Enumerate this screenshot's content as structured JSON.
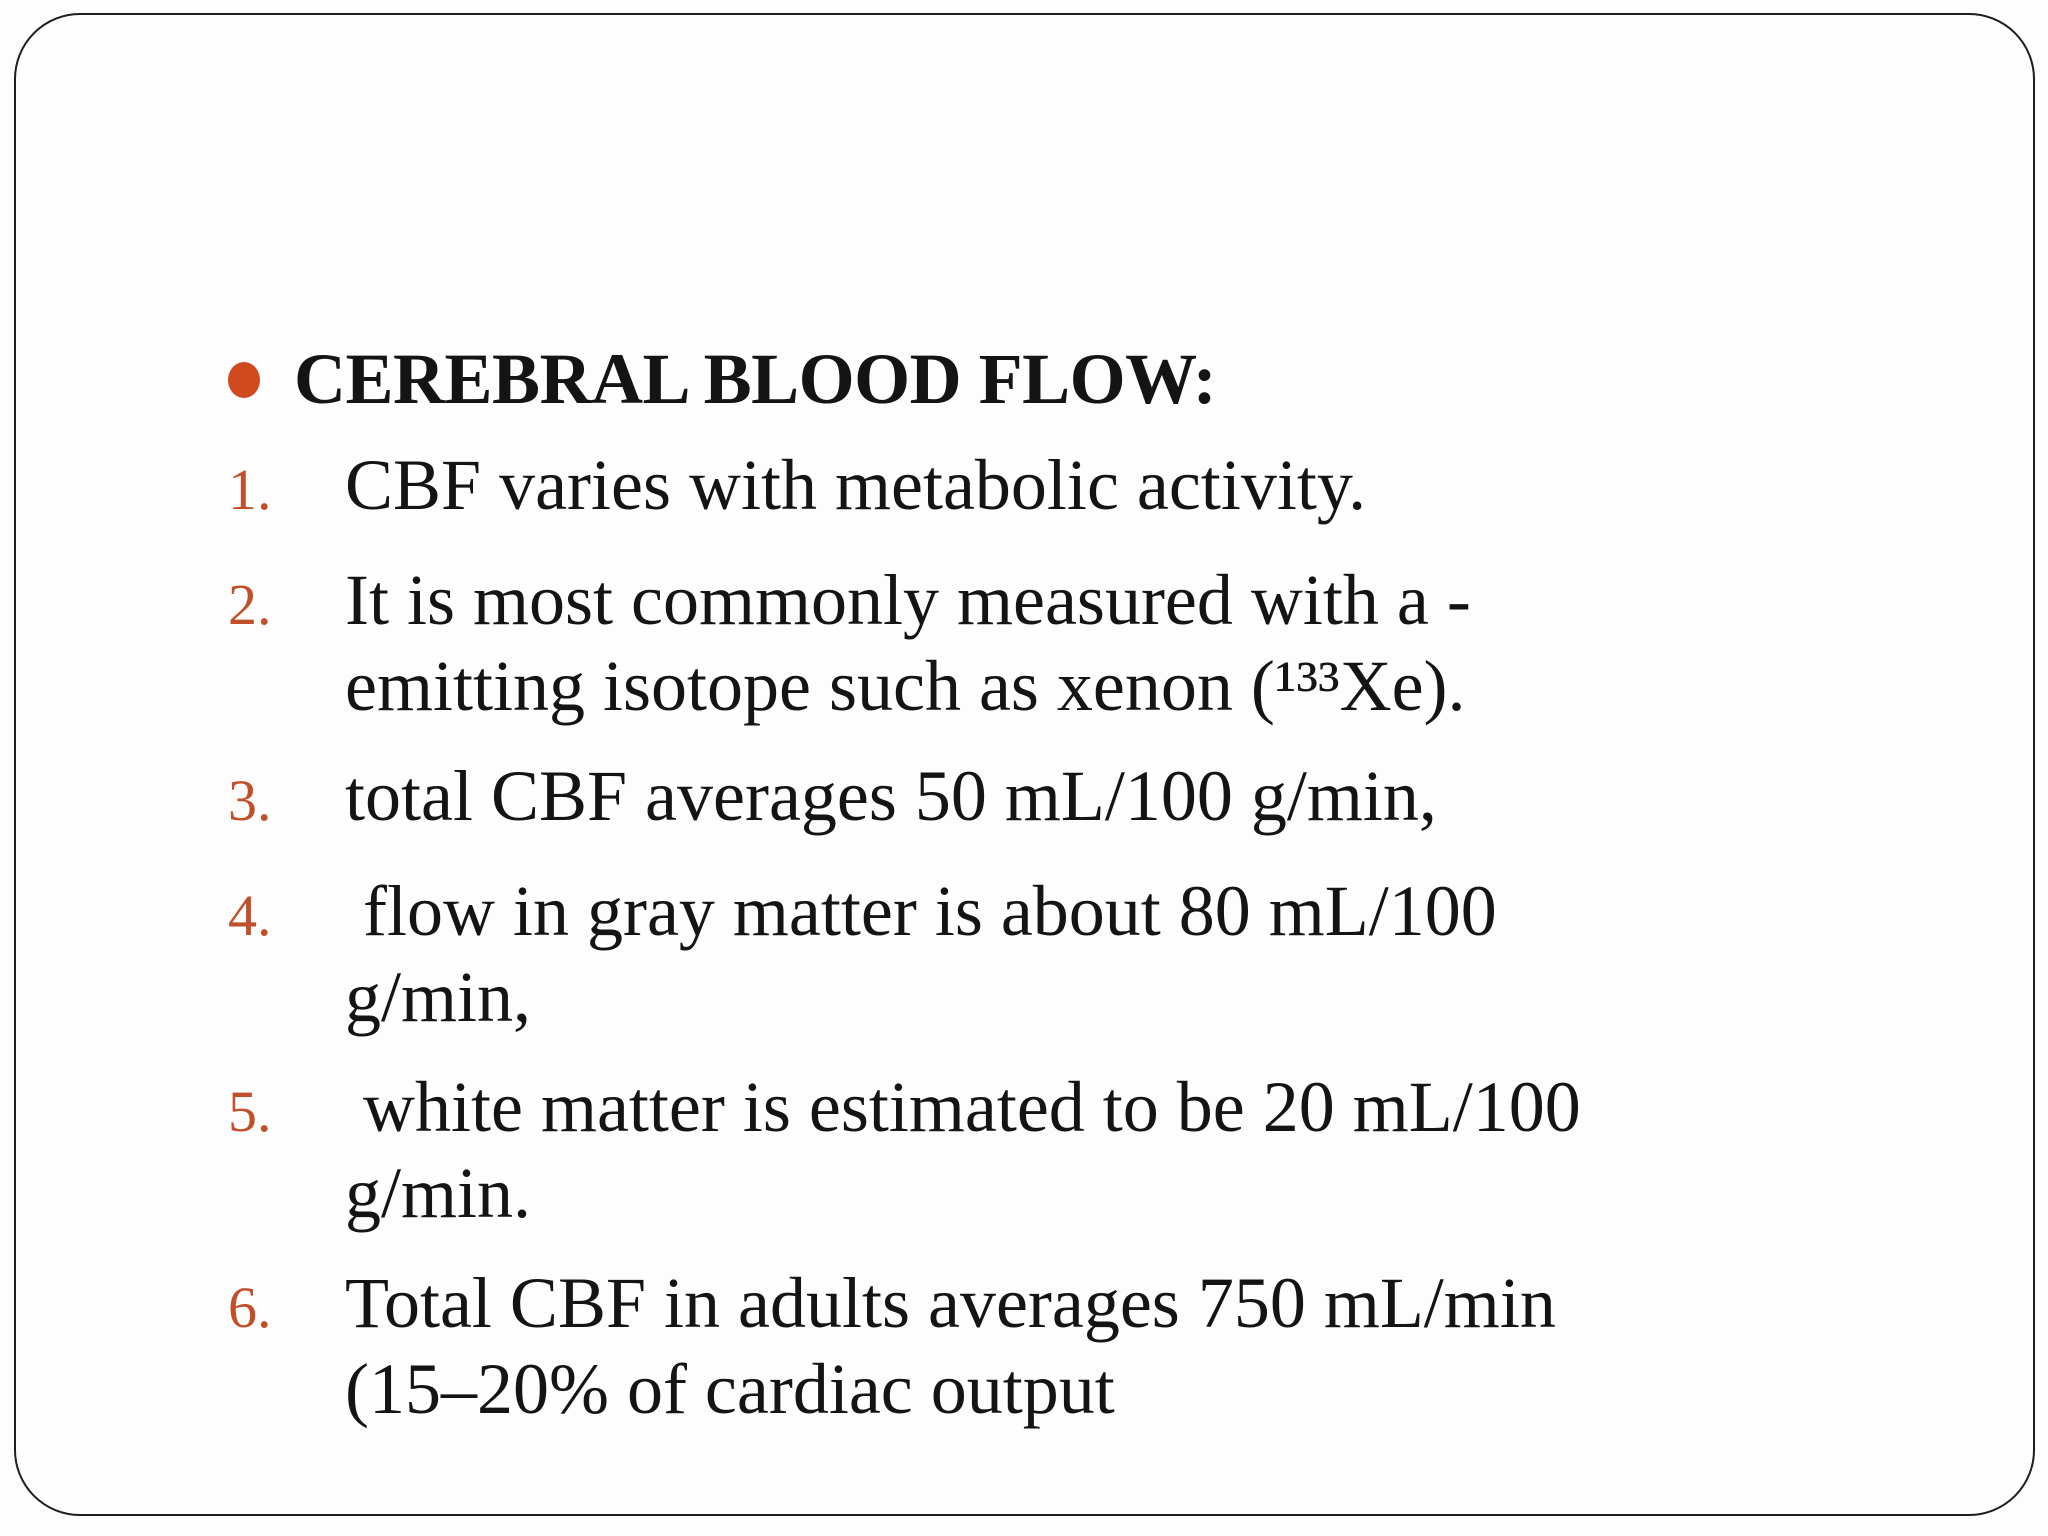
{
  "slide": {
    "background_color": "#fdfdfd",
    "border_color": "#1e1e1e",
    "text_color": "#141414",
    "bullet_color": "#d04a1d",
    "number_color": "#c0502a",
    "heading": {
      "bullet_icon": "orange-dot-icon",
      "text": "CEREBRAL BLOOD FLOW:"
    },
    "list": {
      "items": [
        {
          "num": "1.",
          "text": "CBF varies with metabolic activity."
        },
        {
          "num": "2.",
          "text": "It is most commonly measured with a -emitting isotope such as xenon (¹³³Xe)."
        },
        {
          "num": "3.",
          "text": "total CBF averages 50 mL/100 g/min,"
        },
        {
          "num": "4.",
          "text": " flow in gray matter is about 80 mL/100 g/min,"
        },
        {
          "num": "5.",
          "text": " white matter is estimated to be 20 mL/100 g/min."
        },
        {
          "num": "6.",
          "text": "Total CBF in adults averages 750 mL/min (15–20% of cardiac output"
        }
      ]
    }
  }
}
